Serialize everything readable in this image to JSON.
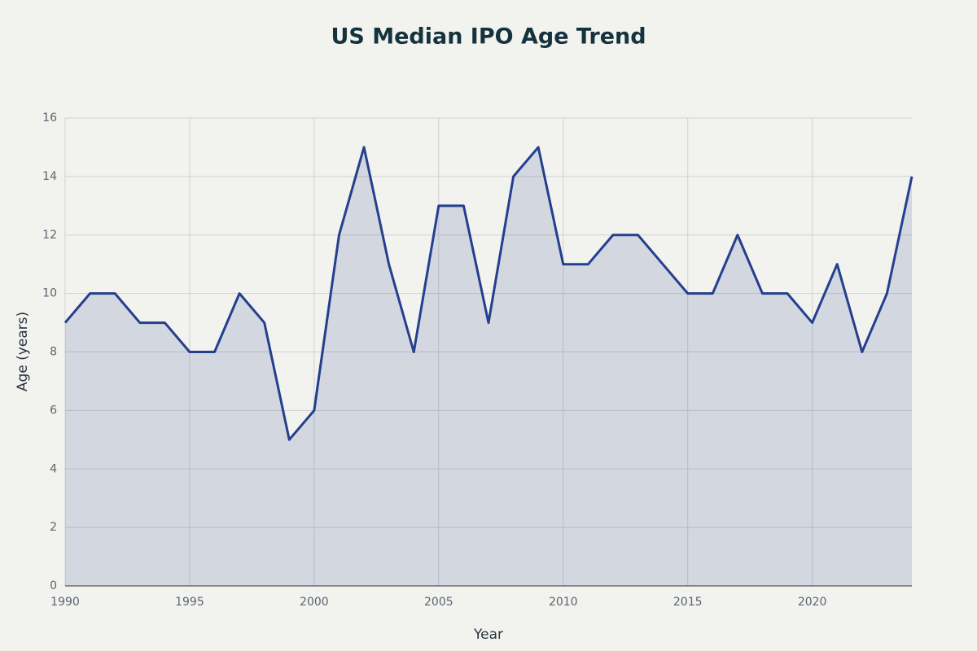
{
  "chart_data": {
    "type": "line",
    "title": "US Median IPO Age Trend",
    "x_label": "Year",
    "y_label": "Age (years)",
    "x": [
      1990,
      1991,
      1992,
      1993,
      1994,
      1995,
      1996,
      1997,
      1998,
      1999,
      2000,
      2001,
      2002,
      2003,
      2004,
      2005,
      2006,
      2007,
      2008,
      2009,
      2010,
      2011,
      2012,
      2013,
      2014,
      2015,
      2016,
      2017,
      2018,
      2019,
      2020,
      2021,
      2022,
      2023,
      2024
    ],
    "series": [
      {
        "name": "Median IPO Age",
        "color": "#243f8e",
        "values": [
          9,
          10,
          10,
          9,
          9,
          8,
          8,
          10,
          9,
          5,
          6,
          12,
          15,
          11,
          8,
          13,
          13,
          9,
          14,
          15,
          11,
          11,
          12,
          12,
          11,
          10,
          10,
          12,
          10,
          10,
          9,
          11,
          8,
          10,
          14
        ]
      }
    ],
    "area": true,
    "grid": true,
    "xlim": [
      1990,
      2024
    ],
    "xticks": [
      1990,
      1995,
      2000,
      2005,
      2010,
      2015,
      2020
    ],
    "ylim": [
      0,
      16
    ],
    "yticks": [
      0,
      2,
      4,
      6,
      8,
      10,
      12,
      14,
      16
    ]
  }
}
